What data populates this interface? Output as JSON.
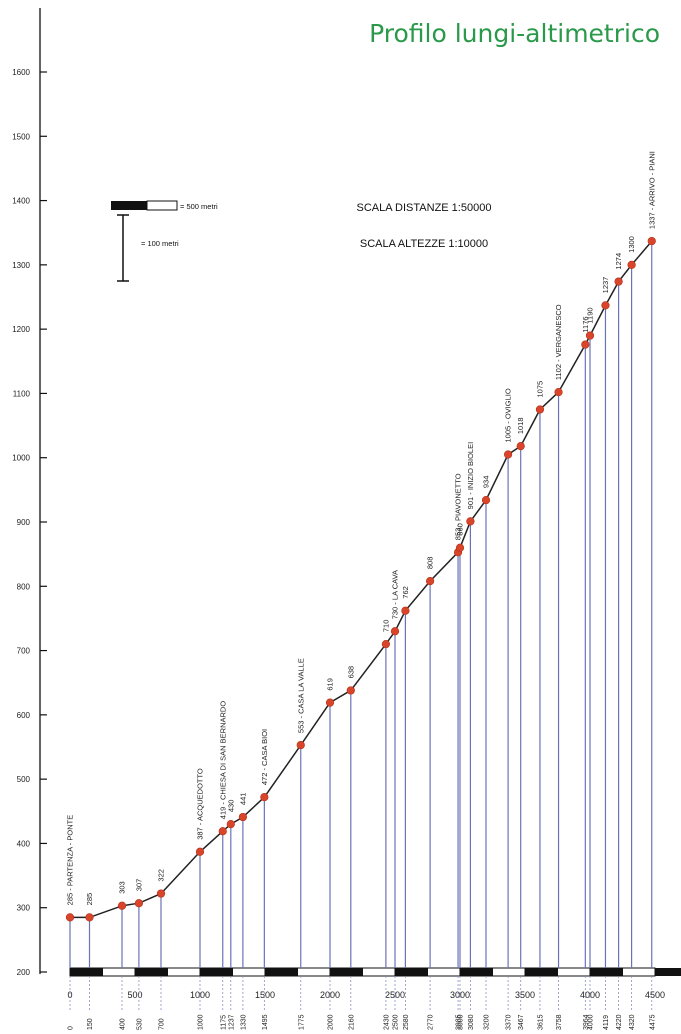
{
  "chart_data": {
    "type": "line",
    "title": "Profilo lungi-altimetrico",
    "xlabel": "",
    "ylabel": "",
    "xlim": [
      0,
      4500
    ],
    "ylim": [
      200,
      1600
    ],
    "y_ticks": [
      200,
      300,
      400,
      500,
      600,
      700,
      800,
      900,
      1000,
      1100,
      1200,
      1300,
      1400,
      1500,
      1600
    ],
    "x_ticks": [
      0,
      500,
      1000,
      1500,
      2000,
      2500,
      3000,
      3500,
      4000,
      4500
    ],
    "scale_distances": "SCALA DISTANZE 1:50000",
    "scale_heights": "SCALA ALTEZZE 1:10000",
    "legend_distance": "= 500 metri",
    "legend_height": "= 100 metri",
    "points": [
      {
        "x": 0,
        "y": 285,
        "dist": "0",
        "label": "285 - PARTENZA - PONTE"
      },
      {
        "x": 150,
        "y": 285,
        "dist": "150",
        "label": "285"
      },
      {
        "x": 400,
        "y": 303,
        "dist": "400",
        "label": "303"
      },
      {
        "x": 530,
        "y": 307,
        "dist": "530",
        "label": "307"
      },
      {
        "x": 700,
        "y": 322,
        "dist": "700",
        "label": "322"
      },
      {
        "x": 1000,
        "y": 387,
        "dist": "1000",
        "label": "387 - ACQUEDOTTO"
      },
      {
        "x": 1175,
        "y": 419,
        "dist": "1175",
        "label": "419 - CHIESA DI SAN BERNARDO"
      },
      {
        "x": 1237,
        "y": 430,
        "dist": "1237",
        "label": "430"
      },
      {
        "x": 1330,
        "y": 441,
        "dist": "1330",
        "label": "441"
      },
      {
        "x": 1495,
        "y": 472,
        "dist": "1495",
        "label": "472 - CASA BIOI"
      },
      {
        "x": 1775,
        "y": 553,
        "dist": "1775",
        "label": "553 - CASA LA VALLE"
      },
      {
        "x": 2000,
        "y": 619,
        "dist": "2000",
        "label": "619"
      },
      {
        "x": 2160,
        "y": 638,
        "dist": "2160",
        "label": "638"
      },
      {
        "x": 2430,
        "y": 710,
        "dist": "2430",
        "label": "710"
      },
      {
        "x": 2500,
        "y": 730,
        "dist": "2500",
        "label": "730 - LA CAVA"
      },
      {
        "x": 2580,
        "y": 762,
        "dist": "2580",
        "label": "762"
      },
      {
        "x": 2770,
        "y": 808,
        "dist": "2770",
        "label": "808"
      },
      {
        "x": 2985,
        "y": 853,
        "dist": "2985",
        "label": "853 - PIAVONETTO"
      },
      {
        "x": 3000,
        "y": 860,
        "dist": "3000",
        "label": "860"
      },
      {
        "x": 3080,
        "y": 901,
        "dist": "3080",
        "label": "901 - INIZIO BIOLEI"
      },
      {
        "x": 3200,
        "y": 934,
        "dist": "3200",
        "label": "934"
      },
      {
        "x": 3370,
        "y": 1005,
        "dist": "3370",
        "label": "1005 - OVIGLIO"
      },
      {
        "x": 3467,
        "y": 1018,
        "dist": "3467",
        "label": "1018"
      },
      {
        "x": 3615,
        "y": 1075,
        "dist": "3615",
        "label": "1075"
      },
      {
        "x": 3758,
        "y": 1102,
        "dist": "3758",
        "label": "1102 - VERGANESCO"
      },
      {
        "x": 3964,
        "y": 1176,
        "dist": "3964",
        "label": "1176"
      },
      {
        "x": 4000,
        "y": 1190,
        "dist": "4000",
        "label": "1190"
      },
      {
        "x": 4119,
        "y": 1237,
        "dist": "4119",
        "label": "1237"
      },
      {
        "x": 4220,
        "y": 1274,
        "dist": "4220",
        "label": "1274"
      },
      {
        "x": 4320,
        "y": 1300,
        "dist": "4320",
        "label": "1300"
      },
      {
        "x": 4475,
        "y": 1337,
        "dist": "4475",
        "label": "1337 - ARRIVO - PIANI"
      }
    ],
    "grid": false,
    "line_color": "#222222",
    "marker_color": "#d9452b",
    "drop_line_color": "#6b73b8"
  }
}
